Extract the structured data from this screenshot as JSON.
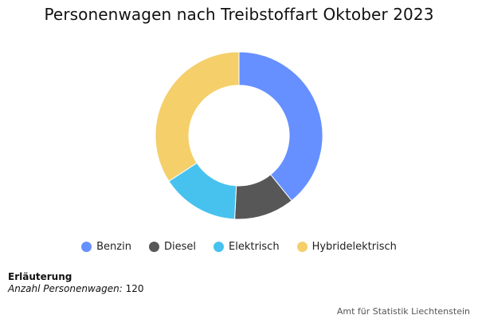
{
  "chart_data": {
    "type": "pie",
    "title": "Personenwagen nach Treibstoffart Oktober 2023",
    "categories": [
      "Benzin",
      "Diesel",
      "Elektrisch",
      "Hybridelektrisch"
    ],
    "values": [
      47,
      14,
      18,
      41
    ],
    "colors": [
      "#6690FF",
      "#575757",
      "#47C2EE",
      "#F4CF6A"
    ],
    "legend_position": "bottom-center",
    "inner_radius_ratio": 0.6
  },
  "note": {
    "heading": "Erläuterung",
    "label": "Anzahl Personenwagen:",
    "value": "120"
  },
  "source": "Amt für Statistik Liechtenstein"
}
